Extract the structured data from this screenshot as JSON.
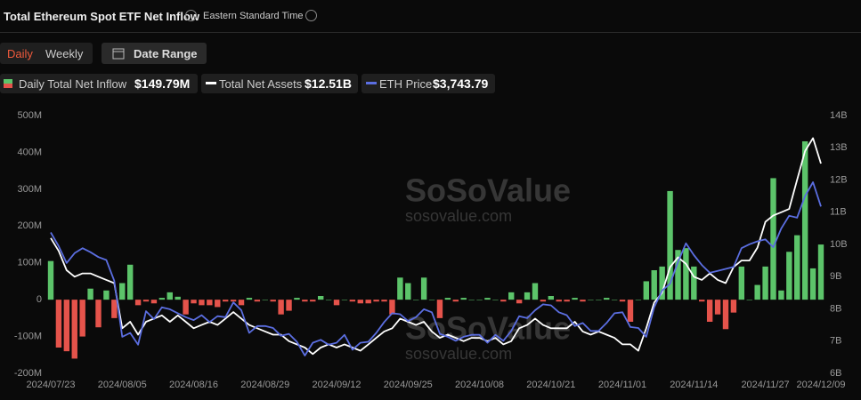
{
  "header": {
    "title": "Total Ethereum Spot ETF Net Inflow",
    "timezone": "Eastern Standard Time"
  },
  "controls": {
    "tabs": [
      "Daily",
      "Weekly"
    ],
    "date_range": "Date Range"
  },
  "watermark": {
    "name": "SoSoValue",
    "url": "sosovalue.com"
  },
  "chart_data": {
    "type": "bar",
    "categories": [
      "2024/07/23",
      null,
      null,
      null,
      null,
      null,
      null,
      null,
      null,
      "2024/08/05",
      null,
      null,
      null,
      null,
      null,
      null,
      null,
      null,
      "2024/08/16",
      null,
      null,
      null,
      null,
      null,
      null,
      null,
      null,
      "2024/08/29",
      null,
      null,
      null,
      null,
      null,
      null,
      null,
      null,
      "2024/09/12",
      null,
      null,
      null,
      null,
      null,
      null,
      null,
      null,
      "2024/09/25",
      null,
      null,
      null,
      null,
      null,
      null,
      null,
      null,
      "2024/10/08",
      null,
      null,
      null,
      null,
      null,
      null,
      null,
      null,
      "2024/10/21",
      null,
      null,
      null,
      null,
      null,
      null,
      null,
      null,
      "2024/11/01",
      null,
      null,
      null,
      null,
      null,
      null,
      null,
      null,
      "2024/11/14",
      null,
      null,
      null,
      null,
      null,
      null,
      null,
      null,
      "2024/11/27",
      null,
      null,
      null,
      null,
      null,
      null,
      "2024/12/09"
    ],
    "ylim": [
      -200,
      500
    ],
    "yticks": [
      {
        "value": 500,
        "label": "500M"
      },
      {
        "value": 400,
        "label": "400M"
      },
      {
        "value": 300,
        "label": "300M"
      },
      {
        "value": 200,
        "label": "200M"
      },
      {
        "value": 100,
        "label": "100M"
      },
      0,
      {
        "value": -100,
        "label": "-100M"
      },
      {
        "value": -200,
        "label": "-200M"
      }
    ],
    "y2lim": [
      6,
      14
    ],
    "y2ticks": [
      {
        "value": 14,
        "label": "14B"
      },
      {
        "value": 13,
        "label": "13B"
      },
      {
        "value": 12,
        "label": "12B"
      },
      {
        "value": 11,
        "label": "11B"
      },
      {
        "value": 10,
        "label": "10B"
      },
      {
        "value": 9,
        "label": "9B"
      },
      {
        "value": 8,
        "label": "8B"
      },
      {
        "value": 7,
        "label": "7B"
      },
      {
        "value": 6,
        "label": "6B"
      }
    ],
    "grid": false,
    "series": [
      {
        "name": "Daily Total Net Inflow",
        "type": "bar",
        "positive_color": "#5cc46a",
        "negative_color": "#e5534b",
        "legend_value": "$149.79M",
        "values": [
          105,
          -130,
          -140,
          -160,
          -100,
          30,
          -75,
          25,
          -50,
          45,
          95,
          -15,
          -5,
          -10,
          5,
          20,
          8,
          -40,
          -10,
          -15,
          -15,
          -20,
          -5,
          -5,
          -15,
          5,
          -5,
          0,
          -5,
          -40,
          -30,
          5,
          -5,
          -5,
          10,
          0,
          -15,
          0,
          -5,
          -10,
          -10,
          -5,
          -5,
          -40,
          60,
          45,
          0,
          60,
          0,
          -50,
          5,
          -5,
          5,
          0,
          0,
          5,
          0,
          -5,
          20,
          -10,
          20,
          45,
          -5,
          10,
          -5,
          -5,
          5,
          -5,
          0,
          0,
          5,
          0,
          -5,
          -60,
          0,
          50,
          80,
          90,
          295,
          135,
          140,
          90,
          -5,
          -60,
          -40,
          -80,
          -35,
          90,
          0,
          40,
          90,
          330,
          25,
          130,
          175,
          430,
          85,
          149.79
        ]
      },
      {
        "name": "Total Net Assets",
        "type": "line",
        "axis": "y2",
        "color": "#ffffff",
        "legend_value": "$12.51B",
        "values": [
          10.2,
          9.8,
          9.2,
          9.0,
          9.1,
          9.1,
          9.0,
          8.9,
          8.8,
          7.4,
          7.6,
          7.2,
          7.6,
          7.7,
          7.8,
          7.6,
          7.8,
          7.6,
          7.4,
          7.5,
          7.6,
          7.5,
          7.7,
          7.9,
          7.7,
          7.5,
          7.4,
          7.3,
          7.2,
          7.2,
          7.0,
          6.9,
          6.8,
          6.6,
          6.8,
          6.9,
          6.8,
          6.9,
          6.8,
          6.7,
          6.9,
          7.1,
          7.3,
          7.4,
          7.7,
          7.6,
          7.5,
          7.6,
          7.3,
          7.1,
          7.2,
          7.1,
          7.0,
          7.1,
          7.1,
          7.0,
          7.1,
          6.9,
          7.0,
          7.4,
          7.5,
          7.7,
          7.5,
          7.4,
          7.4,
          7.4,
          7.6,
          7.3,
          7.2,
          7.3,
          7.2,
          7.1,
          6.9,
          6.9,
          6.7,
          7.4,
          8.2,
          8.5,
          9.3,
          9.6,
          9.4,
          9.0,
          8.9,
          9.1,
          8.9,
          8.8,
          9.3,
          9.5,
          9.5,
          9.9,
          10.7,
          10.9,
          11.0,
          11.1,
          12.0,
          12.9,
          13.3,
          12.51
        ]
      },
      {
        "name": "ETH Price",
        "type": "line",
        "color": "#5b6ee1",
        "legend_value": "$3,743.79",
        "values": [
          3480,
          3340,
          3170,
          3270,
          3320,
          3280,
          3230,
          3200,
          2990,
          2420,
          2460,
          2340,
          2680,
          2600,
          2720,
          2700,
          2660,
          2620,
          2590,
          2640,
          2570,
          2630,
          2620,
          2770,
          2690,
          2460,
          2530,
          2530,
          2510,
          2430,
          2450,
          2370,
          2230,
          2360,
          2390,
          2340,
          2360,
          2440,
          2290,
          2360,
          2370,
          2460,
          2570,
          2660,
          2650,
          2580,
          2620,
          2700,
          2670,
          2450,
          2420,
          2380,
          2420,
          2440,
          2440,
          2360,
          2440,
          2380,
          2480,
          2630,
          2610,
          2690,
          2750,
          2740,
          2670,
          2640,
          2530,
          2560,
          2480,
          2480,
          2560,
          2660,
          2670,
          2520,
          2510,
          2420,
          2720,
          2890,
          2960,
          3180,
          3370,
          3250,
          3150,
          3070,
          3090,
          3110,
          3130,
          3320,
          3360,
          3390,
          3410,
          3330,
          3520,
          3650,
          3630,
          3850,
          3990,
          3743.79
        ]
      }
    ]
  }
}
